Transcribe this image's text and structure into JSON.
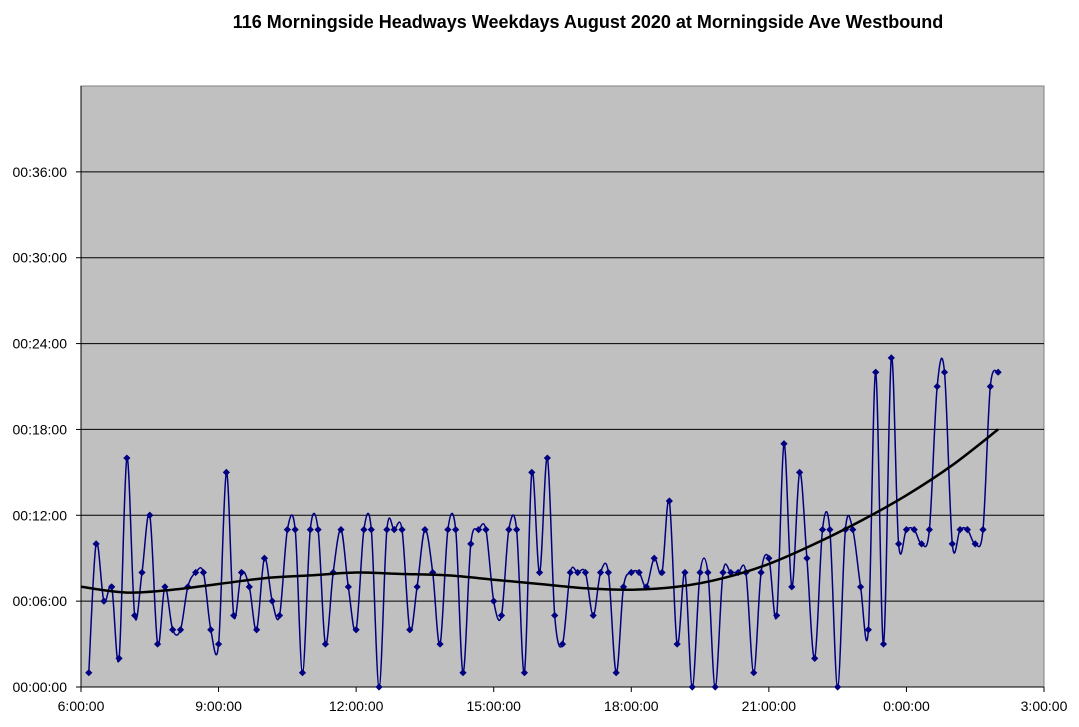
{
  "chart_data": {
    "type": "line",
    "title": "116 Morningside Headways Weekdays August 2020 at Morningside Ave Westbound",
    "xlabel": "",
    "ylabel": "",
    "x_ticks": [
      "6:00:00",
      "9:00:00",
      "12:00:00",
      "15:00:00",
      "18:00:00",
      "21:00:00",
      "0:00:00",
      "3:00:00"
    ],
    "y_ticks": [
      "00:00:00",
      "00:06:00",
      "00:12:00",
      "00:18:00",
      "00:24:00",
      "00:30:00",
      "00:36:00"
    ],
    "xlim_hours": [
      6,
      27
    ],
    "ylim_minutes": [
      0,
      42
    ],
    "grid": "horizontal",
    "legend": "none",
    "colors": {
      "series": "#000080",
      "trend": "#000000",
      "plot_bg": "#c0c0c0"
    },
    "series": [
      {
        "x_hours": [
          6.17,
          6.33,
          6.5,
          6.67,
          6.83,
          7.0,
          7.17,
          7.33,
          7.5,
          7.67,
          7.83,
          8.0,
          8.17,
          8.33,
          8.5,
          8.67,
          8.83,
          9.0,
          9.17,
          9.33,
          9.5,
          9.67,
          9.83,
          10.0,
          10.17,
          10.33,
          10.5,
          10.67,
          10.83,
          11.0,
          11.17,
          11.33,
          11.5,
          11.67,
          11.83,
          12.0,
          12.17,
          12.33,
          12.5,
          12.67,
          12.83,
          13.0,
          13.17,
          13.33,
          13.5,
          13.67,
          13.83,
          14.0,
          14.17,
          14.33,
          14.5,
          14.67,
          14.83,
          15.0,
          15.17,
          15.33,
          15.5,
          15.67,
          15.83,
          16.0,
          16.17,
          16.33,
          16.5,
          16.67,
          16.83,
          17.0,
          17.17,
          17.33,
          17.5,
          17.67,
          17.83,
          18.0,
          18.17,
          18.33,
          18.5,
          18.67,
          18.83,
          19.0,
          19.17,
          19.33,
          19.5,
          19.67,
          19.83,
          20.0,
          20.17,
          20.33,
          20.5,
          20.67,
          20.83,
          21.0,
          21.17,
          21.33,
          21.5,
          21.67,
          21.83,
          22.0,
          22.17,
          22.33,
          22.5,
          22.67,
          22.83,
          23.0,
          23.17,
          23.33,
          23.5,
          23.67,
          23.83,
          24.0,
          24.17,
          24.33,
          24.5,
          24.67,
          24.83,
          25.0,
          25.17,
          25.33,
          25.5,
          25.67,
          25.83,
          26.0
        ],
        "y_minutes": [
          1,
          10,
          6,
          7,
          2,
          16,
          5,
          8,
          12,
          3,
          7,
          4,
          4,
          7,
          8,
          8,
          4,
          3,
          15,
          5,
          8,
          7,
          4,
          9,
          6,
          5,
          11,
          11,
          1,
          11,
          11,
          3,
          8,
          11,
          7,
          4,
          11,
          11,
          0,
          11,
          11,
          11,
          4,
          7,
          11,
          8,
          3,
          11,
          11,
          1,
          10,
          11,
          11,
          6,
          5,
          11,
          11,
          1,
          15,
          8,
          16,
          5,
          3,
          8,
          8,
          8,
          5,
          8,
          8,
          1,
          7,
          8,
          8,
          7,
          9,
          8,
          13,
          3,
          8,
          0,
          8,
          8,
          0,
          8,
          8,
          8,
          8,
          1,
          8,
          9,
          5,
          17,
          7,
          15,
          9,
          2,
          11,
          11,
          0,
          11,
          11,
          7,
          4,
          22,
          3,
          23,
          10,
          11,
          11,
          10,
          11,
          21,
          22,
          10,
          11,
          11,
          10,
          11,
          21,
          22
        ],
        "note_values": "minutes"
      }
    ],
    "trend": {
      "x_hours": [
        6,
        7,
        8,
        9,
        10,
        11,
        12,
        13,
        14,
        15,
        16,
        17,
        18,
        19,
        20,
        21,
        22,
        23,
        24,
        25,
        26
      ],
      "y_minutes": [
        7.0,
        6.6,
        6.8,
        7.2,
        7.6,
        7.8,
        8.0,
        7.9,
        7.8,
        7.5,
        7.2,
        6.9,
        6.8,
        7.0,
        7.6,
        8.6,
        10.0,
        11.6,
        13.4,
        15.5,
        18.0
      ]
    }
  }
}
